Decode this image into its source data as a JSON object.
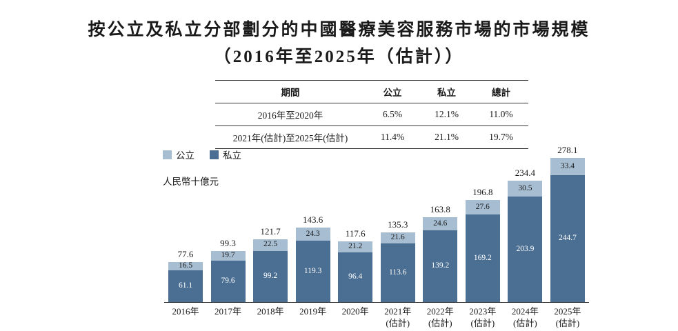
{
  "title": {
    "line1": "按公立及私立分部劃分的中國醫療美容服務市場的市場規模",
    "line2": "（2016年至2025年（估計））"
  },
  "table": {
    "headers": [
      "期間",
      "公立",
      "私立",
      "總計"
    ],
    "rows": [
      [
        "2016年至2020年",
        "6.5%",
        "12.1%",
        "11.0%"
      ],
      [
        "2021年(估計)至2025年(估計)",
        "11.4%",
        "21.1%",
        "19.7%"
      ]
    ]
  },
  "legend": [
    {
      "label": "公立",
      "color": "#a6bdd2"
    },
    {
      "label": "私立",
      "color": "#4b6e93"
    }
  ],
  "unit_label": "人民幣十億元",
  "chart_data": {
    "type": "bar",
    "stacked": true,
    "title": "按公立及私立分部劃分的中國醫療美容服務市場的市場規模（2016年至2025年（估計））",
    "ylabel": "人民幣十億元",
    "xlabel": "",
    "ylim": [
      0,
      300
    ],
    "grid": false,
    "legend_position": "top-left",
    "categories": [
      "2016年",
      "2017年",
      "2018年",
      "2019年",
      "2020年",
      "2021年(估計)",
      "2022年(估計)",
      "2023年(估計)",
      "2024年(估計)",
      "2025年(估計)"
    ],
    "series": [
      {
        "name": "私立",
        "color": "#4b6e93",
        "values": [
          61.1,
          79.6,
          99.2,
          119.3,
          96.4,
          113.6,
          139.2,
          169.2,
          203.9,
          244.7
        ]
      },
      {
        "name": "公立",
        "color": "#a6bdd2",
        "values": [
          16.5,
          19.7,
          22.5,
          24.3,
          21.2,
          21.6,
          24.6,
          27.6,
          30.5,
          33.4
        ]
      }
    ],
    "totals": [
      77.6,
      99.3,
      121.7,
      143.6,
      117.6,
      135.3,
      163.8,
      196.8,
      234.4,
      278.1
    ]
  }
}
